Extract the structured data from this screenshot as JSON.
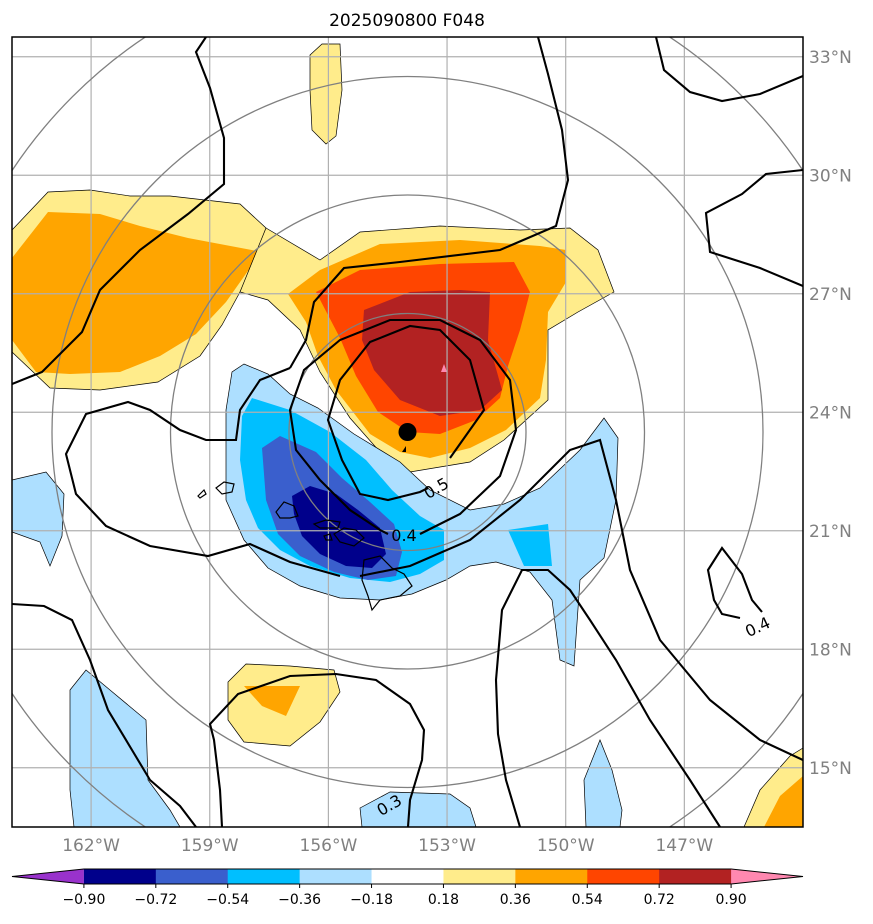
{
  "chart_data": {
    "type": "contour-map",
    "title": "2025090800 F048",
    "map": {
      "lon_range": [
        -164.0,
        -144.0
      ],
      "lat_range": [
        13.5,
        33.5
      ],
      "lon_ticks": [
        {
          "value": -162,
          "label": "162°W"
        },
        {
          "value": -159,
          "label": "159°W"
        },
        {
          "value": -156,
          "label": "156°W"
        },
        {
          "value": -153,
          "label": "153°W"
        },
        {
          "value": -150,
          "label": "150°W"
        },
        {
          "value": -147,
          "label": "147°W"
        }
      ],
      "lat_ticks": [
        {
          "value": 33,
          "label": "33°N"
        },
        {
          "value": 30,
          "label": "30°N"
        },
        {
          "value": 27,
          "label": "27°N"
        },
        {
          "value": 24,
          "label": "24°N"
        },
        {
          "value": 21,
          "label": "21°N"
        },
        {
          "value": 18,
          "label": "18°N"
        },
        {
          "value": 15,
          "label": "15°N"
        }
      ],
      "grid": true,
      "storm_center": {
        "lon": -154.0,
        "lat": 23.5
      },
      "range_rings_deg": [
        3,
        6,
        9,
        12
      ]
    },
    "filled_levels": [
      -0.9,
      -0.72,
      -0.54,
      -0.36,
      -0.18,
      0.18,
      0.36,
      0.54,
      0.72,
      0.9
    ],
    "colorbar": {
      "colors": [
        "#9932cc",
        "#00008b",
        "#3a5fcd",
        "#00bfff",
        "#addfff",
        "#ffffff",
        "#ffec8b",
        "#ffa500",
        "#ff4500",
        "#b22222",
        "#ff88b0"
      ],
      "tick_labels": [
        "−0.90",
        "−0.72",
        "−0.54",
        "−0.36",
        "−0.18",
        "0.18",
        "0.36",
        "0.54",
        "0.72",
        "0.90"
      ],
      "extend": "both"
    },
    "line_contour_labels": [
      {
        "text": "0.5",
        "lon": -152.9,
        "lat": 22.2
      },
      {
        "text": "0.4",
        "lon": -155.0,
        "lat": 20.8
      },
      {
        "text": "0.4",
        "lon": -144.9,
        "lat": 18.4
      },
      {
        "text": "0.3",
        "lon": -156.5,
        "lat": 14.1
      }
    ]
  }
}
